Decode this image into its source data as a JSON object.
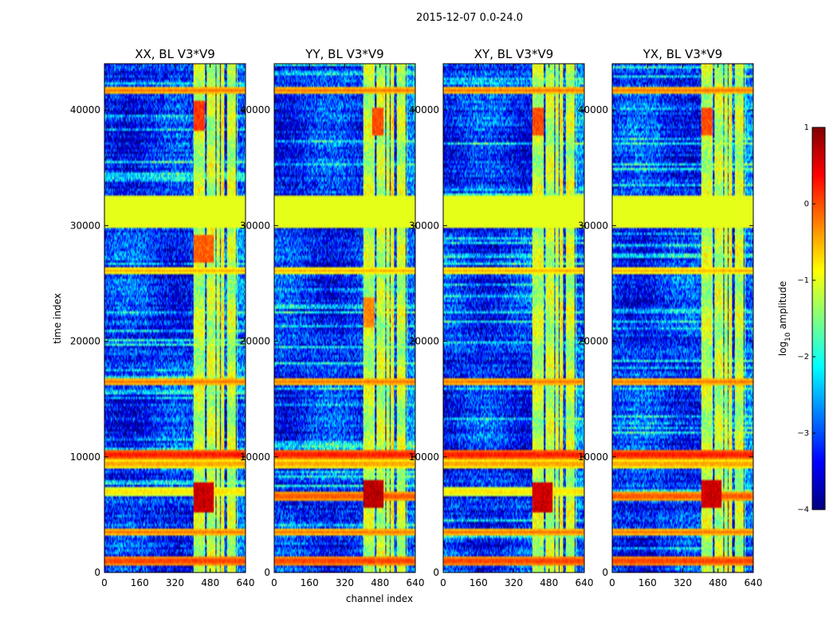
{
  "figure": {
    "suptitle": "2015-12-07 0.0-24.0",
    "xlabel": "channel index",
    "ylabel": "time index"
  },
  "chart_data": [
    {
      "type": "heatmap",
      "title": "XX, BL V3*V9",
      "xlabel": "channel index",
      "ylabel": "time index",
      "xlim": [
        0,
        640
      ],
      "ylim": [
        0,
        44000
      ],
      "xticks": [
        0,
        160,
        320,
        480,
        640
      ],
      "yticks": [
        0,
        10000,
        20000,
        30000,
        40000
      ],
      "color_scale": "log10 amplitude, jet colormap, -4 to 1",
      "background_level": -3.2,
      "bright_channel_bands": [
        [
          405,
          455,
          -1.2
        ],
        [
          465,
          505,
          -1.2
        ],
        [
          510,
          525,
          -1.2
        ],
        [
          530,
          545,
          -1.0
        ],
        [
          555,
          595,
          -1.2
        ],
        [
          600,
          603,
          -1.5
        ]
      ],
      "flagged_time_band": [
        29800,
        32500,
        -1.0
      ],
      "horizontal_rfi_lines": [
        [
          1000,
          0.2
        ],
        [
          3500,
          -0.2
        ],
        [
          7000,
          -0.6
        ],
        [
          9400,
          -0.3
        ],
        [
          10200,
          0.4
        ],
        [
          16500,
          -0.2
        ],
        [
          26100,
          -0.5
        ],
        [
          41700,
          -0.2
        ]
      ],
      "hot_spots": [
        [
          430,
          6500,
          0.6
        ],
        [
          470,
          6500,
          0.6
        ],
        [
          430,
          28000,
          -0.1
        ],
        [
          470,
          28000,
          -0.1
        ],
        [
          430,
          39500,
          0.1
        ]
      ]
    },
    {
      "type": "heatmap",
      "title": "YY, BL V3*V9",
      "xlabel": "channel index",
      "ylabel": "time index",
      "xlim": [
        0,
        640
      ],
      "ylim": [
        0,
        44000
      ],
      "xticks": [
        0,
        160,
        320,
        480,
        640
      ],
      "yticks": [
        0,
        10000,
        20000,
        30000,
        40000
      ],
      "color_scale": "log10 amplitude, jet colormap, -4 to 1",
      "background_level": -3.2,
      "bright_channel_bands": [
        [
          405,
          455,
          -1.2
        ],
        [
          465,
          505,
          -1.2
        ],
        [
          510,
          525,
          -1.2
        ],
        [
          530,
          545,
          -1.0
        ],
        [
          555,
          595,
          -1.2
        ],
        [
          600,
          603,
          -1.5
        ]
      ],
      "flagged_time_band": [
        29800,
        32500,
        -1.0
      ],
      "horizontal_rfi_lines": [
        [
          1000,
          0.2
        ],
        [
          3500,
          -0.2
        ],
        [
          6600,
          0.1
        ],
        [
          9400,
          -0.3
        ],
        [
          10200,
          0.4
        ],
        [
          16500,
          -0.2
        ],
        [
          26100,
          -0.5
        ],
        [
          41700,
          -0.2
        ]
      ],
      "hot_spots": [
        [
          430,
          6800,
          0.7
        ],
        [
          470,
          6800,
          0.7
        ],
        [
          430,
          22500,
          -0.3
        ],
        [
          470,
          39000,
          0.0
        ]
      ]
    },
    {
      "type": "heatmap",
      "title": "XY, BL V3*V9",
      "xlabel": "channel index",
      "ylabel": "time index",
      "xlim": [
        0,
        640
      ],
      "ylim": [
        0,
        44000
      ],
      "xticks": [
        0,
        160,
        320,
        480,
        640
      ],
      "yticks": [
        0,
        10000,
        20000,
        30000,
        40000
      ],
      "color_scale": "log10 amplitude, jet colormap, -4 to 1",
      "background_level": -3.2,
      "bright_channel_bands": [
        [
          405,
          455,
          -1.2
        ],
        [
          465,
          505,
          -1.2
        ],
        [
          510,
          525,
          -1.2
        ],
        [
          530,
          545,
          -1.0
        ],
        [
          555,
          595,
          -1.2
        ],
        [
          600,
          603,
          -1.5
        ]
      ],
      "flagged_time_band": [
        29800,
        32500,
        -1.0
      ],
      "horizontal_rfi_lines": [
        [
          1000,
          0.2
        ],
        [
          3500,
          -0.2
        ],
        [
          7000,
          -0.6
        ],
        [
          9400,
          -0.3
        ],
        [
          10200,
          0.4
        ],
        [
          16500,
          -0.2
        ],
        [
          26100,
          -0.5
        ],
        [
          41700,
          -0.2
        ]
      ],
      "hot_spots": [
        [
          430,
          6500,
          0.6
        ],
        [
          470,
          6500,
          0.6
        ],
        [
          430,
          39000,
          0.0
        ]
      ]
    },
    {
      "type": "heatmap",
      "title": "YX, BL V3*V9",
      "xlabel": "channel index",
      "ylabel": "time index",
      "xlim": [
        0,
        640
      ],
      "ylim": [
        0,
        44000
      ],
      "xticks": [
        0,
        160,
        320,
        480,
        640
      ],
      "yticks": [
        0,
        10000,
        20000,
        30000,
        40000
      ],
      "color_scale": "log10 amplitude, jet colormap, -4 to 1",
      "background_level": -3.2,
      "bright_channel_bands": [
        [
          405,
          455,
          -1.2
        ],
        [
          465,
          505,
          -1.2
        ],
        [
          510,
          525,
          -1.2
        ],
        [
          530,
          545,
          -1.0
        ],
        [
          555,
          595,
          -1.2
        ],
        [
          600,
          603,
          -1.5
        ]
      ],
      "flagged_time_band": [
        29800,
        32500,
        -1.0
      ],
      "horizontal_rfi_lines": [
        [
          1000,
          0.2
        ],
        [
          3500,
          -0.2
        ],
        [
          6600,
          0.1
        ],
        [
          9400,
          -0.3
        ],
        [
          10200,
          0.4
        ],
        [
          16500,
          -0.2
        ],
        [
          26100,
          -0.5
        ],
        [
          41700,
          -0.2
        ]
      ],
      "hot_spots": [
        [
          430,
          6800,
          0.6
        ],
        [
          470,
          6800,
          0.6
        ],
        [
          430,
          39000,
          0.0
        ]
      ]
    }
  ],
  "colorbar": {
    "label_prefix": "log",
    "label_sub": "10",
    "label_suffix": " amplitude",
    "range": [
      -4,
      1
    ],
    "ticks": [
      1,
      0,
      -1,
      -2,
      -3,
      -4
    ],
    "ticklabels": [
      "1",
      "0",
      "−1",
      "−2",
      "−3",
      "−4"
    ],
    "colormap": [
      "#00007f",
      "#0000ff",
      "#007fff",
      "#00ffff",
      "#7fff7f",
      "#ffff00",
      "#ff7f00",
      "#ff0000",
      "#7f0000"
    ]
  }
}
